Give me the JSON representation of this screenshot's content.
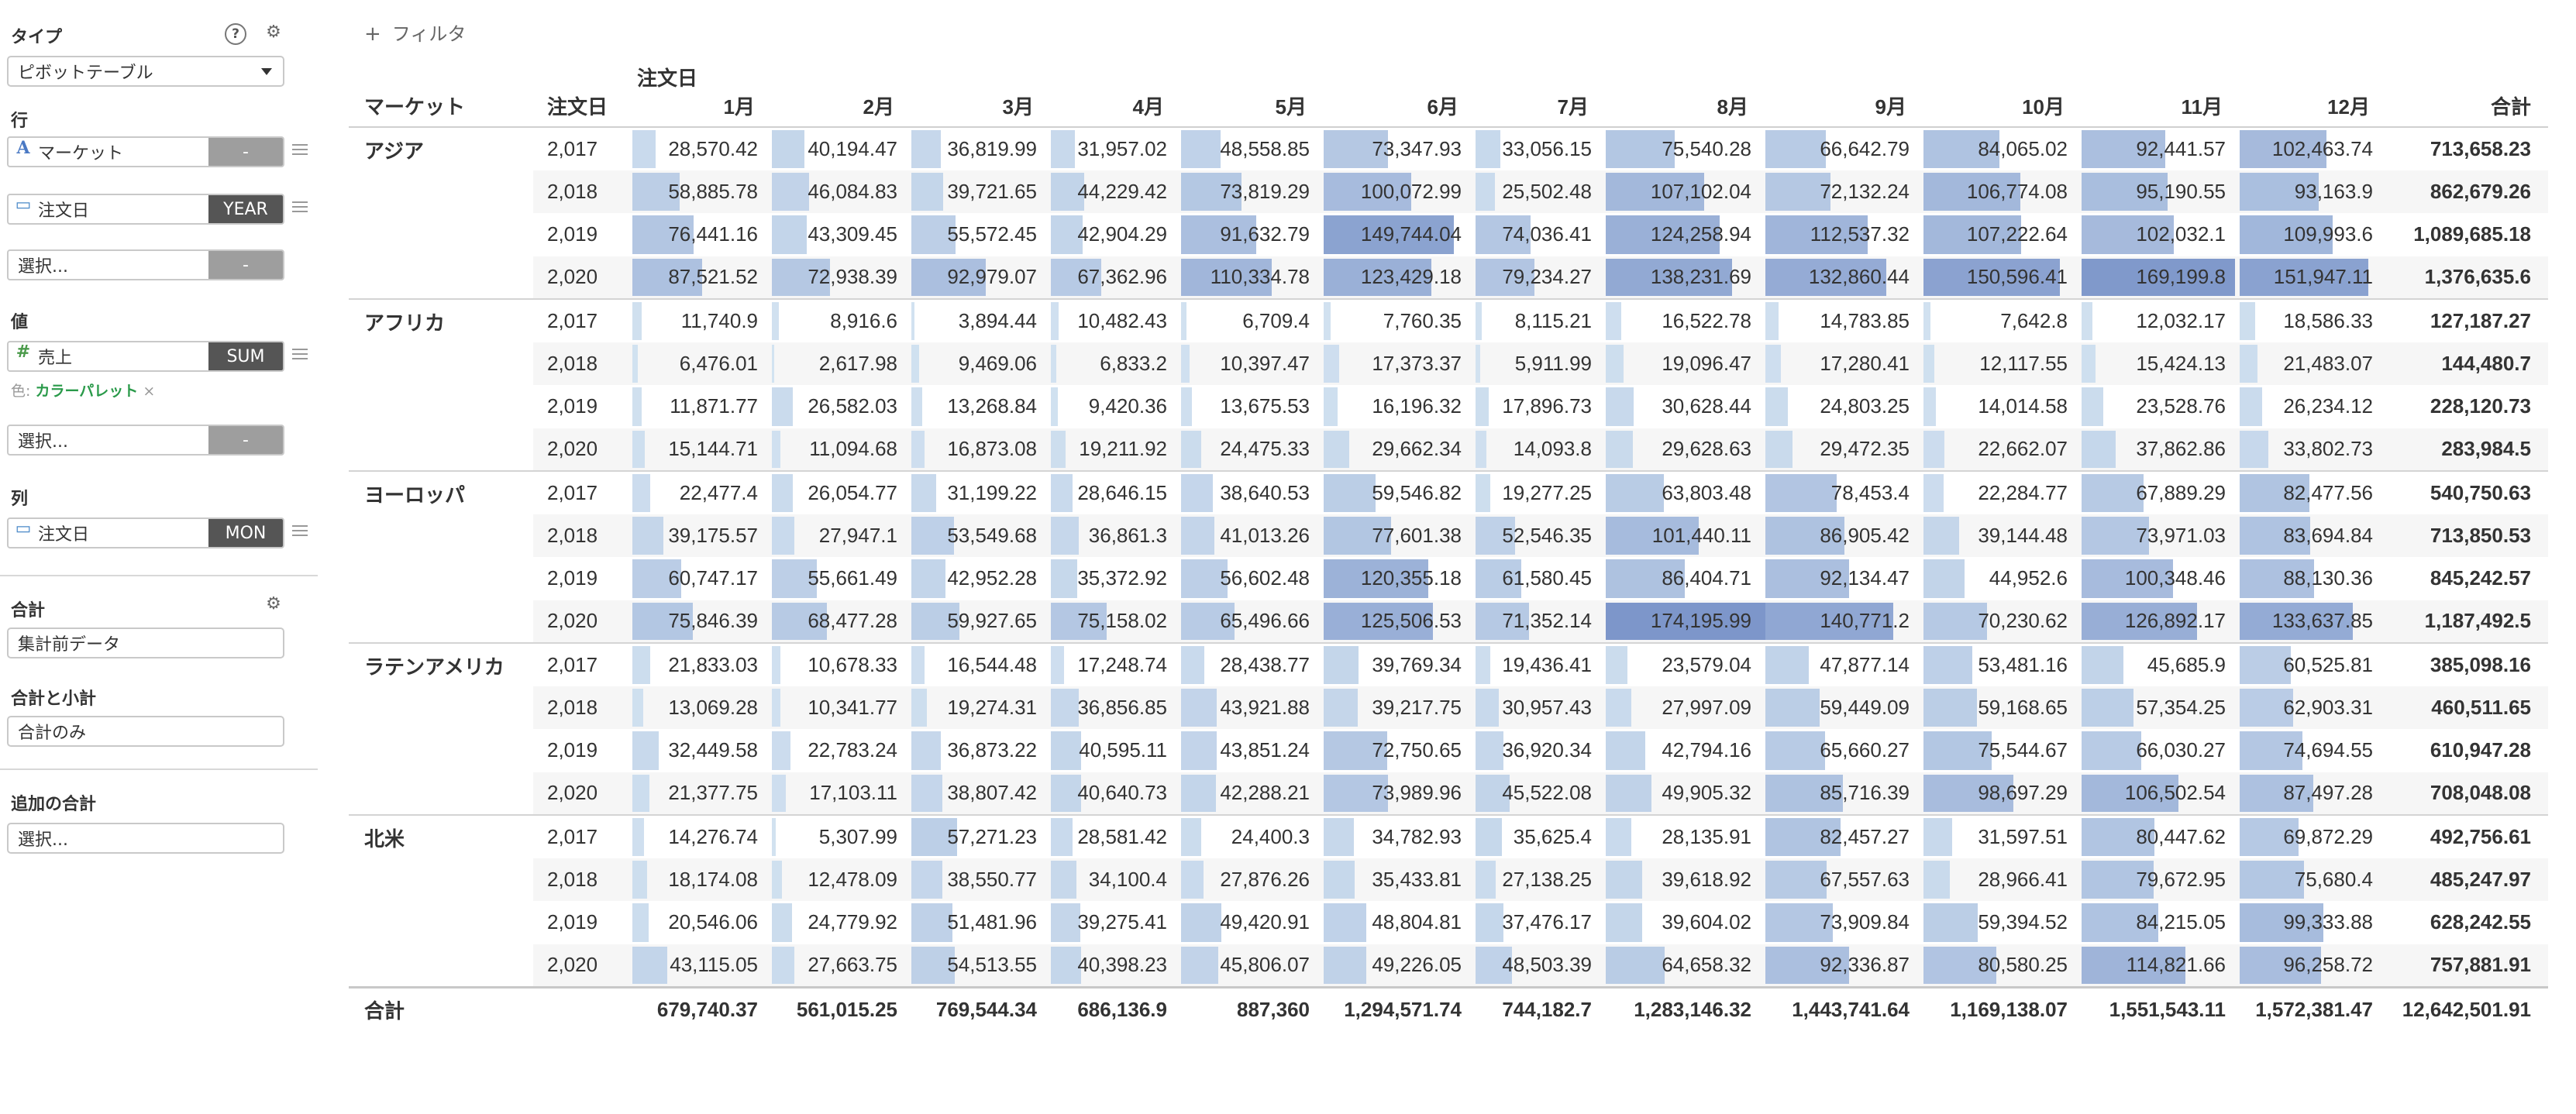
{
  "panel": {
    "type": {
      "label": "タイプ",
      "value": "ピボットテーブル"
    },
    "rows": {
      "label": "行",
      "items": [
        {
          "name": "マーケット",
          "agg": "-",
          "icon": "text-type-icon"
        },
        {
          "name": "注文日",
          "agg": "YEAR",
          "icon": "calendar-icon"
        },
        {
          "name": "選択...",
          "agg": "-"
        }
      ]
    },
    "values": {
      "label": "値",
      "items": [
        {
          "name": "売上",
          "agg": "SUM",
          "icon": "number-type-icon"
        },
        {
          "name": "選択...",
          "agg": "-"
        }
      ],
      "palette_prefix": "色:",
      "palette_value": "カラーパレット",
      "palette_remove": "×"
    },
    "columns": {
      "label": "列",
      "items": [
        {
          "name": "注文日",
          "agg": "MON",
          "icon": "calendar-icon"
        }
      ]
    },
    "total": {
      "label": "合計",
      "value": "集計前データ"
    },
    "subtotal": {
      "label": "合計と小計",
      "value": "合計のみ"
    },
    "extra": {
      "label": "追加の合計",
      "value": "選択..."
    }
  },
  "filter": {
    "icon": "plus-icon",
    "label": "フィルタ"
  },
  "table": {
    "col_group_label": "注文日",
    "row_headers": [
      "マーケット",
      "注文日"
    ],
    "months": [
      "1月",
      "2月",
      "3月",
      "4月",
      "5月",
      "6月",
      "7月",
      "8月",
      "9月",
      "10月",
      "11月",
      "12月"
    ],
    "total_header": "合計",
    "groups": [
      {
        "market": "アジア",
        "rows": [
          {
            "year": "2,017",
            "values": [
              28570.42,
              40194.47,
              36819.99,
              31957.02,
              48558.85,
              73347.93,
              33056.15,
              75540.28,
              66642.79,
              84065.02,
              92441.57,
              102463.74
            ],
            "total": "713,658.23"
          },
          {
            "year": "2,018",
            "values": [
              58885.78,
              46084.83,
              39721.65,
              44229.42,
              73819.29,
              100072.99,
              25502.48,
              107102.04,
              72132.24,
              106774.08,
              95190.55,
              93163.9
            ],
            "total": "862,679.26"
          },
          {
            "year": "2,019",
            "values": [
              76441.16,
              43309.45,
              55572.45,
              42904.29,
              91632.79,
              149744.04,
              74036.41,
              124258.94,
              112537.32,
              107222.64,
              102032.1,
              109993.6
            ],
            "total": "1,089,685.18"
          },
          {
            "year": "2,020",
            "values": [
              87521.52,
              72938.39,
              92979.07,
              67362.96,
              110334.78,
              123429.18,
              79234.27,
              138231.69,
              132860.44,
              150596.41,
              169199.8,
              151947.11
            ],
            "total": "1,376,635.6"
          }
        ]
      },
      {
        "market": "アフリカ",
        "rows": [
          {
            "year": "2,017",
            "values": [
              11740.9,
              8916.6,
              3894.44,
              10482.43,
              6709.4,
              7760.35,
              8115.21,
              16522.78,
              14783.85,
              7642.8,
              12032.17,
              18586.33
            ],
            "total": "127,187.27"
          },
          {
            "year": "2,018",
            "values": [
              6476.01,
              2617.98,
              9469.06,
              6833.2,
              10397.47,
              17373.37,
              5911.99,
              19096.47,
              17280.41,
              12117.55,
              15424.13,
              21483.07
            ],
            "total": "144,480.7"
          },
          {
            "year": "2,019",
            "values": [
              11871.77,
              26582.03,
              13268.84,
              9420.36,
              13675.53,
              16196.32,
              17896.73,
              30628.44,
              24803.25,
              14014.58,
              23528.76,
              26234.12
            ],
            "total": "228,120.73"
          },
          {
            "year": "2,020",
            "values": [
              15144.71,
              11094.68,
              16873.08,
              19211.92,
              24475.33,
              29662.34,
              14093.8,
              29628.63,
              29472.35,
              22662.07,
              37862.86,
              33802.73
            ],
            "total": "283,984.5"
          }
        ]
      },
      {
        "market": "ヨーロッパ",
        "rows": [
          {
            "year": "2,017",
            "values": [
              22477.4,
              26054.77,
              31199.22,
              28646.15,
              38640.53,
              59546.82,
              19277.25,
              63803.48,
              78453.4,
              22284.77,
              67889.29,
              82477.56
            ],
            "total": "540,750.63"
          },
          {
            "year": "2,018",
            "values": [
              39175.57,
              27947.1,
              53549.68,
              36861.3,
              41013.26,
              77601.38,
              52546.35,
              101440.11,
              86905.42,
              39144.48,
              73971.03,
              83694.84
            ],
            "total": "713,850.53"
          },
          {
            "year": "2,019",
            "values": [
              60747.17,
              55661.49,
              42952.28,
              35372.92,
              56602.48,
              120355.18,
              61580.45,
              86404.71,
              92134.47,
              44952.6,
              100348.46,
              88130.36
            ],
            "total": "845,242.57"
          },
          {
            "year": "2,020",
            "values": [
              75846.39,
              68477.28,
              59927.65,
              75158.02,
              65496.66,
              125506.53,
              71352.14,
              174195.99,
              140771.2,
              70230.62,
              126892.17,
              133637.85
            ],
            "total": "1,187,492.5"
          }
        ]
      },
      {
        "market": "ラテンアメリカ",
        "rows": [
          {
            "year": "2,017",
            "values": [
              21833.03,
              10678.33,
              16544.48,
              17248.74,
              28438.77,
              39769.34,
              19436.41,
              23579.04,
              47877.14,
              53481.16,
              45685.9,
              60525.81
            ],
            "total": "385,098.16"
          },
          {
            "year": "2,018",
            "values": [
              13069.28,
              10341.77,
              19274.31,
              36856.85,
              43921.88,
              39217.75,
              30957.43,
              27997.09,
              59449.09,
              59168.65,
              57354.25,
              62903.31
            ],
            "total": "460,511.65"
          },
          {
            "year": "2,019",
            "values": [
              32449.58,
              22783.24,
              36873.22,
              40595.11,
              43851.24,
              72750.65,
              36920.34,
              42794.16,
              65660.27,
              75544.67,
              66030.27,
              74694.55
            ],
            "total": "610,947.28"
          },
          {
            "year": "2,020",
            "values": [
              21377.75,
              17103.11,
              38807.42,
              40640.73,
              42288.21,
              73989.96,
              45522.08,
              49905.32,
              85716.39,
              98697.29,
              106502.54,
              87497.28
            ],
            "total": "708,048.08"
          }
        ]
      },
      {
        "market": "北米",
        "rows": [
          {
            "year": "2,017",
            "values": [
              14276.74,
              5307.99,
              57271.23,
              28581.42,
              24400.3,
              34782.93,
              35625.4,
              28135.91,
              82457.27,
              31597.51,
              80447.62,
              69872.29
            ],
            "total": "492,756.61"
          },
          {
            "year": "2,018",
            "values": [
              18174.08,
              12478.09,
              38550.77,
              34100.4,
              27876.26,
              35433.81,
              27138.25,
              39618.92,
              67557.63,
              28966.41,
              79672.95,
              75680.4
            ],
            "total": "485,247.97"
          },
          {
            "year": "2,019",
            "values": [
              20546.06,
              24779.92,
              51481.96,
              39275.41,
              49420.91,
              48804.81,
              37476.17,
              39604.02,
              73909.84,
              59394.52,
              84215.05,
              99333.88
            ],
            "total": "628,242.55"
          },
          {
            "year": "2,020",
            "values": [
              43115.05,
              27663.75,
              54513.55,
              40398.23,
              45806.07,
              49226.05,
              48503.39,
              64658.32,
              92336.87,
              80580.25,
              114821.66,
              96258.72
            ],
            "total": "757,881.91"
          }
        ]
      }
    ],
    "footer": {
      "label": "合計",
      "values": [
        "679,740.37",
        "561,015.25",
        "769,544.34",
        "686,136.9",
        "887,360",
        "1,294,571.74",
        "744,182.7",
        "1,283,146.32",
        "1,443,741.64",
        "1,169,138.07",
        "1,551,543.11",
        "1,572,381.47"
      ],
      "grand_total": "12,642,501.91"
    },
    "scale_max": 174195.99,
    "colors": {
      "bar_low": "#d3e3f1",
      "bar_high": "#7d96ca"
    }
  }
}
